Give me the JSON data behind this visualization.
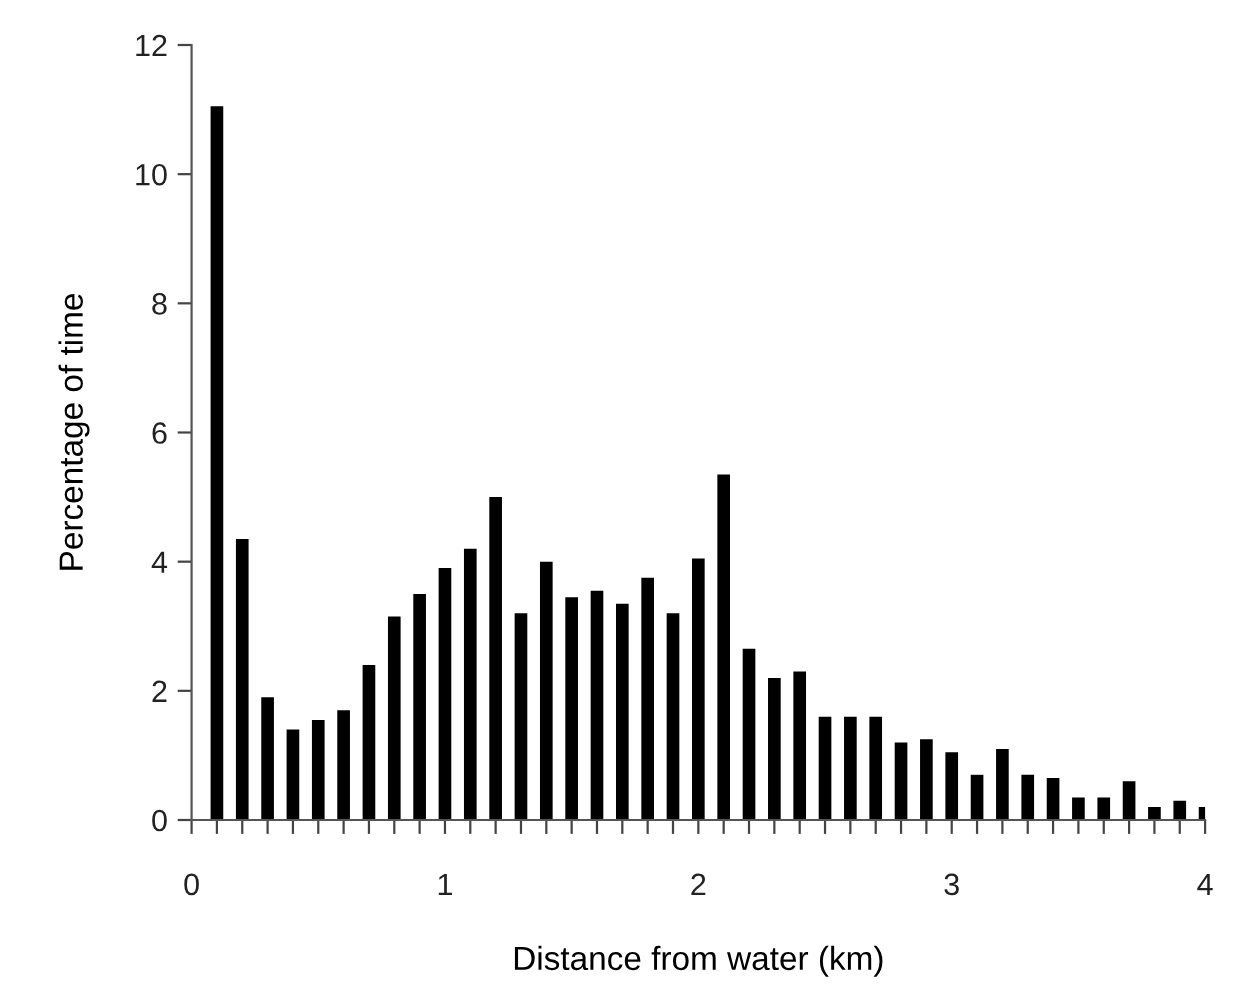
{
  "chart_data": {
    "type": "bar",
    "xlabel": "Distance from water (km)",
    "ylabel": "Percentage of time",
    "x": [
      0.1,
      0.2,
      0.3,
      0.4,
      0.5,
      0.6,
      0.7,
      0.8,
      0.9,
      1.0,
      1.1,
      1.2,
      1.3,
      1.4,
      1.5,
      1.6,
      1.7,
      1.8,
      1.9,
      2.0,
      2.1,
      2.2,
      2.3,
      2.4,
      2.5,
      2.6,
      2.7,
      2.8,
      2.9,
      3.0,
      3.1,
      3.2,
      3.3,
      3.4,
      3.5,
      3.6,
      3.7,
      3.8,
      3.9,
      4.0
    ],
    "values": [
      11.05,
      4.35,
      1.9,
      1.4,
      1.55,
      1.7,
      2.4,
      3.15,
      3.5,
      3.9,
      4.2,
      5.0,
      3.2,
      4.0,
      3.45,
      3.55,
      3.35,
      3.75,
      3.2,
      4.05,
      5.35,
      2.65,
      2.2,
      2.3,
      1.6,
      1.6,
      1.6,
      1.2,
      1.25,
      1.05,
      0.7,
      1.1,
      0.7,
      0.65,
      0.35,
      0.35,
      0.6,
      0.2,
      0.3,
      0.2
    ],
    "color": "#000000",
    "xlim": [
      0,
      4
    ],
    "ylim": [
      0,
      12
    ],
    "yticks": [
      0,
      2,
      4,
      6,
      8,
      10,
      12
    ],
    "xticks": [
      0,
      {
        "value": 0.1,
        "label": null
      },
      {
        "value": 0.2,
        "label": null
      },
      {
        "value": 0.3,
        "label": null
      },
      {
        "value": 0.4,
        "label": null
      },
      {
        "value": 0.5,
        "label": null
      },
      {
        "value": 0.6,
        "label": null
      },
      {
        "value": 0.7,
        "label": null
      },
      {
        "value": 0.8,
        "label": null
      },
      {
        "value": 0.9,
        "label": null
      },
      1,
      {
        "value": 1.1,
        "label": null
      },
      {
        "value": 1.2,
        "label": null
      },
      {
        "value": 1.3,
        "label": null
      },
      {
        "value": 1.4,
        "label": null
      },
      {
        "value": 1.5,
        "label": null
      },
      {
        "value": 1.6,
        "label": null
      },
      {
        "value": 1.7,
        "label": null
      },
      {
        "value": 1.8,
        "label": null
      },
      {
        "value": 1.9,
        "label": null
      },
      2,
      {
        "value": 2.1,
        "label": null
      },
      {
        "value": 2.2,
        "label": null
      },
      {
        "value": 2.3,
        "label": null
      },
      {
        "value": 2.4,
        "label": null
      },
      {
        "value": 2.5,
        "label": null
      },
      {
        "value": 2.6,
        "label": null
      },
      {
        "value": 2.7,
        "label": null
      },
      {
        "value": 2.8,
        "label": null
      },
      {
        "value": 2.9,
        "label": null
      },
      3,
      {
        "value": 3.1,
        "label": null
      },
      {
        "value": 3.2,
        "label": null
      },
      {
        "value": 3.3,
        "label": null
      },
      {
        "value": 3.4,
        "label": null
      },
      {
        "value": 3.5,
        "label": null
      },
      {
        "value": 3.6,
        "label": null
      },
      {
        "value": 3.7,
        "label": null
      },
      {
        "value": 3.8,
        "label": null
      },
      {
        "value": 3.9,
        "label": null
      },
      4
    ],
    "grid": false
  }
}
